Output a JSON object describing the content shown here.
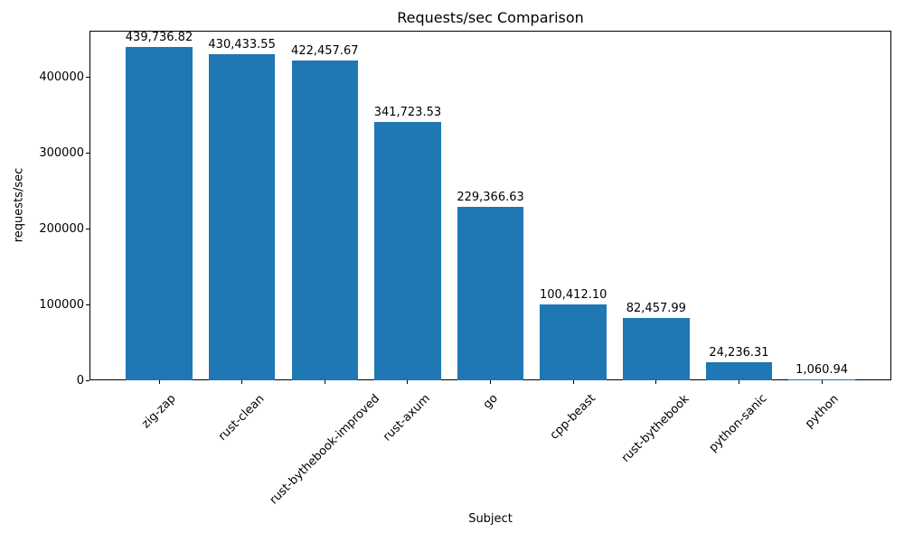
{
  "chart_data": {
    "type": "bar",
    "title": "Requests/sec Comparison",
    "xlabel": "Subject",
    "ylabel": "requests/sec",
    "categories": [
      "zig-zap",
      "rust-clean",
      "rust-bythebook-improved",
      "rust-axum",
      "go",
      "cpp-beast",
      "rust-bythebook",
      "python-sanic",
      "python"
    ],
    "values": [
      439736.82,
      430433.55,
      422457.67,
      341723.53,
      229366.63,
      100412.1,
      82457.99,
      24236.31,
      1060.94
    ],
    "value_labels": [
      "439,736.82",
      "430,433.55",
      "422,457.67",
      "341,723.53",
      "229,366.63",
      "100,412.10",
      "82,457.99",
      "24,236.31",
      "1,060.94"
    ],
    "yticks": [
      0,
      100000,
      200000,
      300000,
      400000
    ],
    "ytick_labels": [
      "0",
      "100000",
      "200000",
      "300000",
      "400000"
    ],
    "ylim": [
      0,
      461723.66
    ],
    "bar_color": "#1f77b4",
    "grid": false,
    "legend": null
  }
}
